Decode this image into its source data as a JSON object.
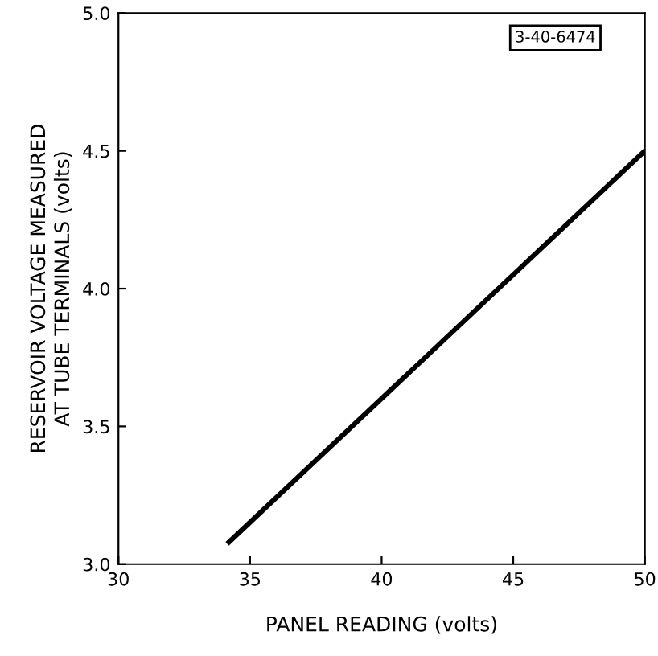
{
  "chart_data": {
    "type": "line",
    "xlabel": "PANEL READING (volts)",
    "ylabel": "RESERVOIR VOLTAGE MEASURED\nAT TUBE TERMINALS (volts)",
    "x": [
      34.2,
      50
    ],
    "series": [
      {
        "color": "#000000",
        "values": [
          3.08,
          4.5
        ]
      }
    ],
    "xlim": [
      30,
      50
    ],
    "xticks": [
      30,
      35,
      40,
      45,
      50
    ],
    "ylim": [
      3.0,
      5.0
    ],
    "yticks": [
      {
        "value": 3.0,
        "label": "3.0"
      },
      3.5,
      {
        "value": 4.0,
        "label": "4.0"
      },
      4.5,
      {
        "value": 5.0,
        "label": "5.0"
      }
    ],
    "grid": false,
    "legend": false,
    "marker": "none",
    "line_style": "solid",
    "annotations": [
      "3-40-6474"
    ]
  }
}
